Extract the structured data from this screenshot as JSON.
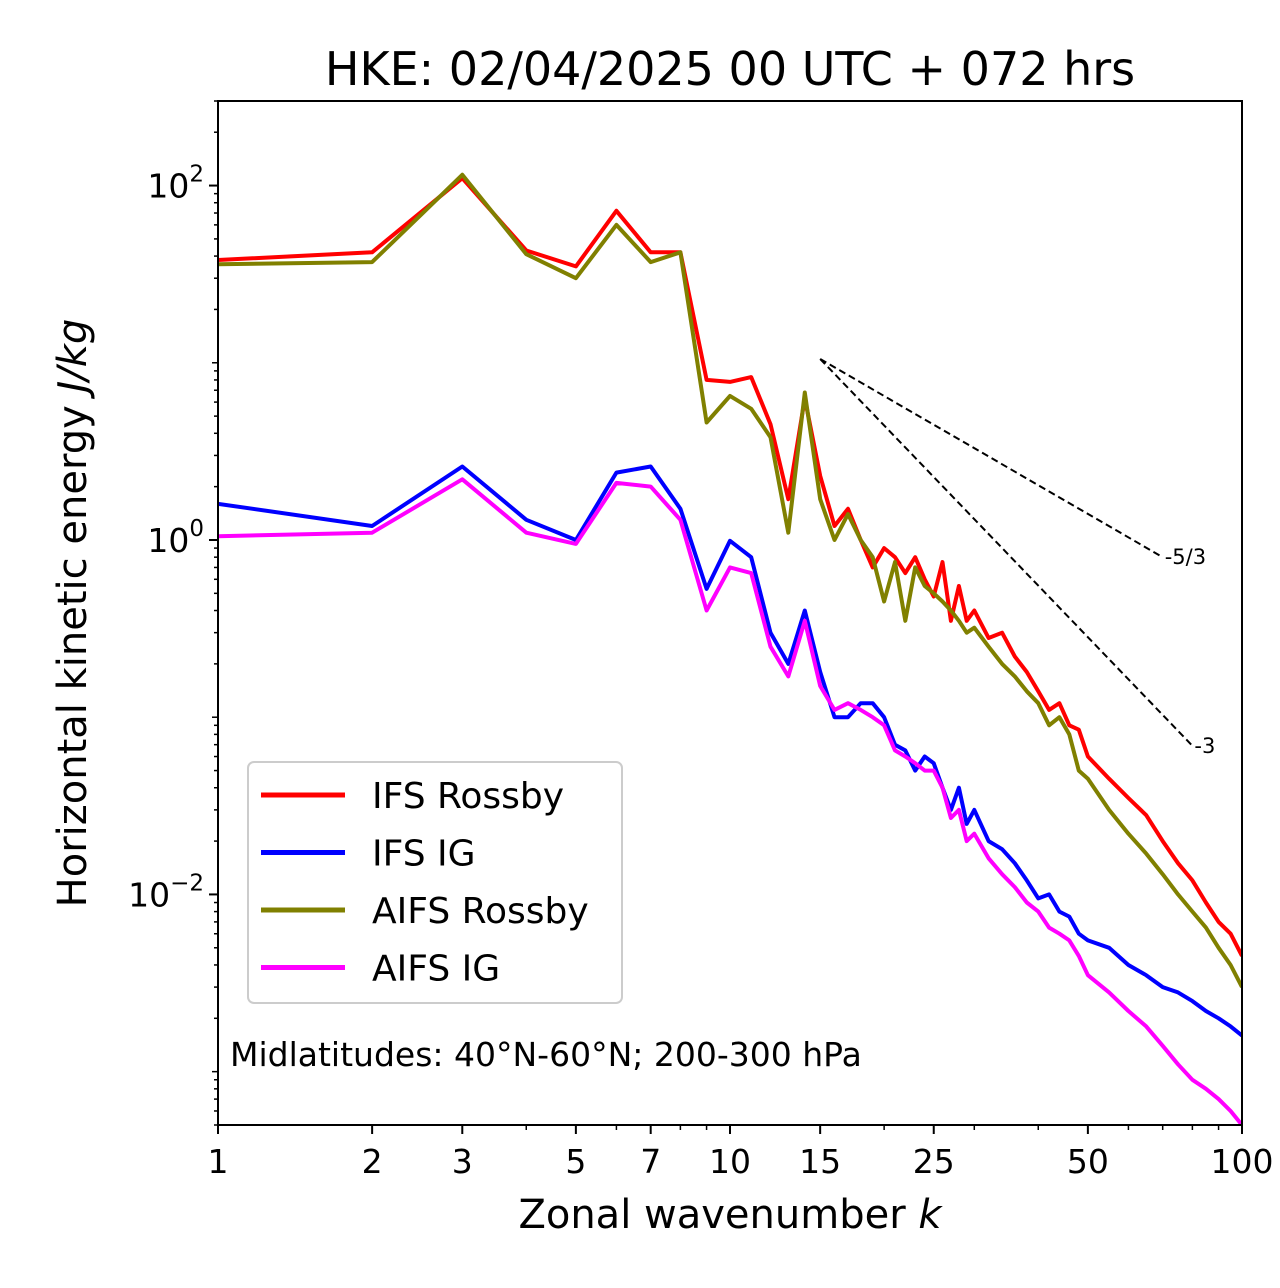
{
  "chart_data": {
    "type": "line",
    "title": "HKE: 02/04/2025 00 UTC + 072 hrs",
    "xlabel": "Zonal wavenumber",
    "xlabel_var": "k",
    "ylabel": "Horizontal kinetic energy",
    "ylabel_unit": "J/kg",
    "xscale": "log",
    "yscale": "log",
    "xlim": [
      1,
      100
    ],
    "ylim": [
      0.0005,
      300
    ],
    "x_ticks": [
      1,
      2,
      3,
      5,
      7,
      10,
      15,
      25,
      50,
      100
    ],
    "x_tick_labels": [
      "1",
      "2",
      "3",
      "5",
      "7",
      "10",
      "15",
      "25",
      "50",
      "100"
    ],
    "y_ticks": [
      {
        "value": 100,
        "base": "10",
        "exp": "2"
      },
      {
        "value": 1,
        "base": "10",
        "exp": "0"
      },
      {
        "value": 0.01,
        "base": "10",
        "exp": "−2"
      }
    ],
    "grid": false,
    "legend_position": "lower-left",
    "annotation": "Midlatitudes: 40°N-60°N; 200-300 hPa",
    "reference_slopes": [
      {
        "label": "-5/3",
        "slope": -1.6667,
        "x": [
          15,
          70
        ],
        "y": [
          10.5,
          0.8
        ]
      },
      {
        "label": "-3",
        "slope": -3,
        "x": [
          15,
          80
        ],
        "y": [
          10.5,
          0.069
        ]
      }
    ],
    "series": [
      {
        "name": "IFS Rossby",
        "color": "#ff0000",
        "x": [
          1,
          2,
          3,
          4,
          5,
          6,
          7,
          8,
          9,
          10,
          11,
          12,
          13,
          14,
          15,
          16,
          17,
          18,
          19,
          20,
          21,
          22,
          23,
          24,
          25,
          26,
          27,
          28,
          29,
          30,
          32,
          34,
          36,
          38,
          40,
          42,
          44,
          46,
          48,
          50,
          55,
          60,
          65,
          70,
          75,
          80,
          85,
          90,
          95,
          100
        ],
        "y": [
          38,
          42,
          110,
          43,
          35,
          72,
          42,
          42,
          8,
          7.8,
          8.3,
          4.5,
          1.7,
          6.3,
          2.3,
          1.2,
          1.5,
          1.0,
          0.7,
          0.9,
          0.8,
          0.65,
          0.8,
          0.6,
          0.48,
          0.75,
          0.35,
          0.55,
          0.35,
          0.4,
          0.28,
          0.3,
          0.22,
          0.18,
          0.14,
          0.11,
          0.12,
          0.09,
          0.085,
          0.06,
          0.045,
          0.035,
          0.028,
          0.02,
          0.015,
          0.012,
          0.009,
          0.007,
          0.006,
          0.0045
        ]
      },
      {
        "name": "IFS IG",
        "color": "#0000ff",
        "x": [
          1,
          2,
          3,
          4,
          5,
          6,
          7,
          8,
          9,
          10,
          11,
          12,
          13,
          14,
          15,
          16,
          17,
          18,
          19,
          20,
          21,
          22,
          23,
          24,
          25,
          26,
          27,
          28,
          29,
          30,
          32,
          34,
          36,
          38,
          40,
          42,
          44,
          46,
          48,
          50,
          55,
          60,
          65,
          70,
          75,
          80,
          85,
          90,
          95,
          100
        ],
        "y": [
          1.6,
          1.2,
          2.6,
          1.3,
          1.0,
          2.4,
          2.6,
          1.5,
          0.53,
          0.99,
          0.8,
          0.3,
          0.2,
          0.4,
          0.18,
          0.1,
          0.1,
          0.12,
          0.12,
          0.1,
          0.07,
          0.065,
          0.05,
          0.06,
          0.055,
          0.04,
          0.03,
          0.04,
          0.025,
          0.03,
          0.02,
          0.018,
          0.015,
          0.012,
          0.0095,
          0.01,
          0.008,
          0.0075,
          0.006,
          0.0055,
          0.005,
          0.004,
          0.0035,
          0.003,
          0.0028,
          0.0025,
          0.0022,
          0.002,
          0.0018,
          0.0016
        ]
      },
      {
        "name": "AIFS Rossby",
        "color": "#808000",
        "x": [
          1,
          2,
          3,
          4,
          5,
          6,
          7,
          8,
          9,
          10,
          11,
          12,
          13,
          14,
          15,
          16,
          17,
          18,
          19,
          20,
          21,
          22,
          23,
          24,
          25,
          26,
          27,
          28,
          29,
          30,
          32,
          34,
          36,
          38,
          40,
          42,
          44,
          46,
          48,
          50,
          55,
          60,
          65,
          70,
          75,
          80,
          85,
          90,
          95,
          100
        ],
        "y": [
          36,
          37,
          115,
          41,
          30,
          60,
          37,
          42,
          4.6,
          6.5,
          5.5,
          3.8,
          1.1,
          6.8,
          1.7,
          1.0,
          1.4,
          1.0,
          0.8,
          0.45,
          0.75,
          0.35,
          0.7,
          0.55,
          0.5,
          0.45,
          0.4,
          0.35,
          0.3,
          0.32,
          0.25,
          0.2,
          0.17,
          0.14,
          0.12,
          0.09,
          0.1,
          0.08,
          0.05,
          0.045,
          0.03,
          0.022,
          0.017,
          0.013,
          0.01,
          0.008,
          0.0065,
          0.005,
          0.004,
          0.003
        ]
      },
      {
        "name": "AIFS IG",
        "color": "#ff00ff",
        "x": [
          1,
          2,
          3,
          4,
          5,
          6,
          7,
          8,
          9,
          10,
          11,
          12,
          13,
          14,
          15,
          16,
          17,
          18,
          19,
          20,
          21,
          22,
          23,
          24,
          25,
          26,
          27,
          28,
          29,
          30,
          32,
          34,
          36,
          38,
          40,
          42,
          44,
          46,
          48,
          50,
          55,
          60,
          65,
          70,
          75,
          80,
          85,
          90,
          95,
          100
        ],
        "y": [
          1.05,
          1.1,
          2.2,
          1.1,
          0.95,
          2.1,
          2.0,
          1.3,
          0.4,
          0.7,
          0.65,
          0.25,
          0.17,
          0.35,
          0.15,
          0.11,
          0.12,
          0.11,
          0.1,
          0.09,
          0.065,
          0.06,
          0.055,
          0.05,
          0.05,
          0.04,
          0.027,
          0.03,
          0.02,
          0.022,
          0.016,
          0.013,
          0.011,
          0.009,
          0.008,
          0.0065,
          0.006,
          0.0055,
          0.0045,
          0.0035,
          0.0028,
          0.0022,
          0.0018,
          0.0014,
          0.0011,
          0.0009,
          0.0008,
          0.0007,
          0.0006,
          0.0005
        ]
      }
    ]
  }
}
